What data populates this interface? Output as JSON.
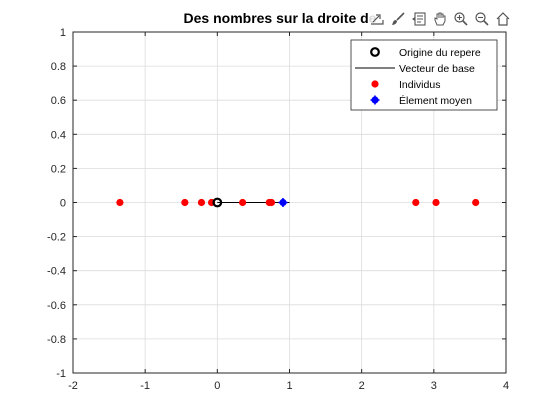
{
  "colors": {
    "origin": "#000000",
    "vector": "#000000",
    "individuals": "#ff0000",
    "mean": "#0000ff",
    "grid": "#dcdcdc",
    "axis": "#262626"
  },
  "toolbar": {
    "icons": [
      "export-icon",
      "brush-icon",
      "data-tips-icon",
      "pan-icon",
      "zoom-in-icon",
      "zoom-out-icon",
      "home-icon"
    ]
  },
  "chart_data": {
    "type": "scatter",
    "title": "Des nombres sur la droite de",
    "xlabel": "",
    "ylabel": "",
    "xlim": [
      -2,
      4
    ],
    "ylim": [
      -1,
      1
    ],
    "xticks": [
      -2,
      -1,
      0,
      1,
      2,
      3,
      4
    ],
    "yticks": [
      -1,
      -0.8,
      -0.6,
      -0.4,
      -0.2,
      0,
      0.2,
      0.4,
      0.6,
      0.8,
      1
    ],
    "xtick_labels": [
      "-2",
      "-1",
      "0",
      "1",
      "2",
      "3",
      "4"
    ],
    "ytick_labels": [
      "-1",
      "-0.8",
      "-0.6",
      "-0.4",
      "-0.2",
      "0",
      "0.2",
      "0.4",
      "0.6",
      "0.8",
      "1"
    ],
    "grid": true,
    "legend_position": "top-right",
    "series": [
      {
        "name": "Origine du repere",
        "kind": "origin",
        "x": [
          0
        ],
        "y": [
          0
        ]
      },
      {
        "name": "Vecteur de base",
        "kind": "line",
        "x": [
          0,
          1
        ],
        "y": [
          0,
          0
        ]
      },
      {
        "name": "Individus",
        "kind": "points",
        "x": [
          -1.35,
          -0.45,
          -0.22,
          -0.08,
          0.35,
          0.72,
          0.75,
          2.75,
          3.03,
          3.58
        ],
        "y": [
          0,
          0,
          0,
          0,
          0,
          0,
          0,
          0,
          0,
          0
        ]
      },
      {
        "name": "Élement moyen",
        "kind": "mean",
        "x": [
          0.91
        ],
        "y": [
          0
        ]
      }
    ]
  }
}
